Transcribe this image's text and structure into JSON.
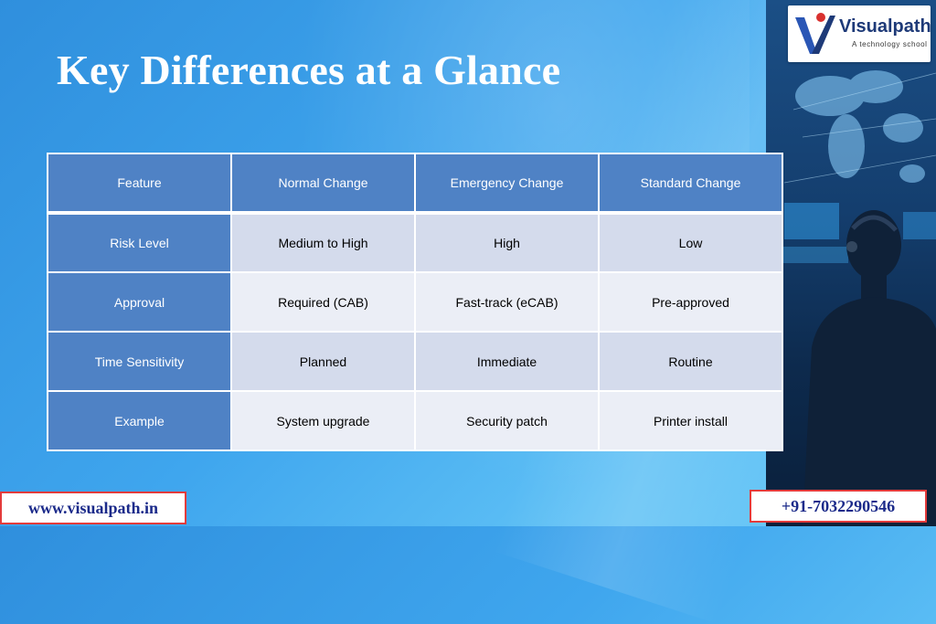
{
  "slide": {
    "title": "Key Differences at a Glance"
  },
  "logo": {
    "name": "Visualpath",
    "tagline": "A technology school"
  },
  "table": {
    "headers": [
      "Feature",
      "Normal Change",
      "Emergency Change",
      "Standard Change"
    ],
    "rows": [
      [
        "Risk Level",
        "Medium to High",
        "High",
        "Low"
      ],
      [
        "Approval",
        "Required (CAB)",
        "Fast-track (eCAB)",
        "Pre-approved"
      ],
      [
        "Time Sensitivity",
        "Planned",
        "Immediate",
        "Routine"
      ],
      [
        "Example",
        "System upgrade",
        "Security patch",
        "Printer install"
      ]
    ]
  },
  "footer": {
    "website": "www.visualpath.in",
    "phone": "+91-7032290546"
  },
  "colors": {
    "header_cell": "#4f82c5",
    "row_dark": "#d4dbec",
    "row_light": "#ebeef6",
    "footer_border": "#e33b3b",
    "footer_text": "#1b2a8a"
  }
}
